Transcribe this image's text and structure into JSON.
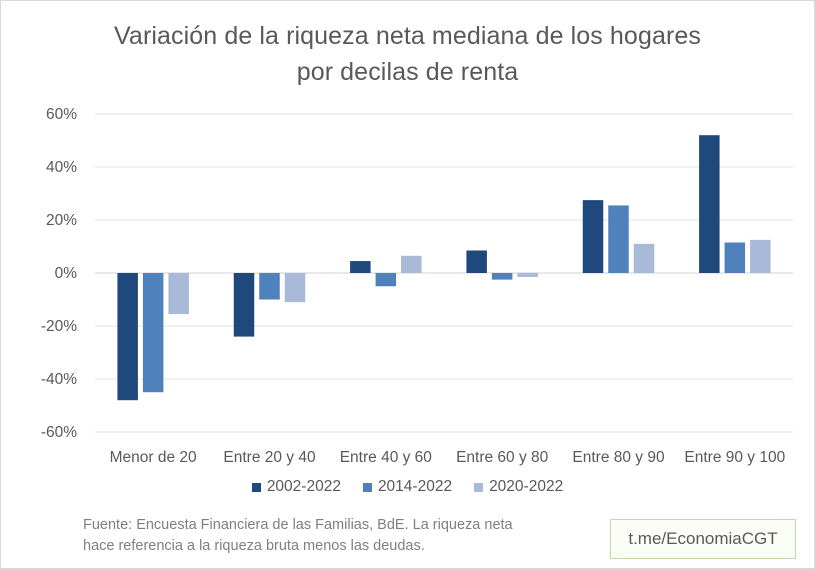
{
  "chart_data": {
    "type": "bar",
    "title": "Variación de la riqueza neta mediana de los hogares",
    "subtitle": "por decilas de renta",
    "categories": [
      "Menor de 20",
      "Entre 20 y 40",
      "Entre 40 y 60",
      "Entre 60 y 80",
      "Entre 80 y 90",
      "Entre 90 y 100"
    ],
    "series": [
      {
        "name": "2002-2022",
        "color": "#1f497d",
        "values": [
          -48,
          -24,
          4.5,
          8.5,
          27.5,
          52
        ]
      },
      {
        "name": "2014-2022",
        "color": "#4f81bd",
        "values": [
          -45,
          -10,
          -5,
          -2.5,
          25.5,
          11.5
        ]
      },
      {
        "name": "2020-2022",
        "color": "#a9bad9",
        "values": [
          -15.5,
          -11,
          6.5,
          -1.5,
          11,
          12.5
        ]
      }
    ],
    "yticks": [
      "-60%",
      "-40%",
      "-20%",
      "0%",
      "20%",
      "40%",
      "60%"
    ],
    "ytick_values": [
      -60,
      -40,
      -20,
      0,
      20,
      40,
      60
    ],
    "ylim": [
      -60,
      60
    ],
    "grid": true,
    "legend_position": "bottom"
  },
  "footnote": {
    "line1": "Fuente: Encuesta Financiera de las Familias, BdE. La riqueza neta",
    "line2": "hace referencia a la riqueza bruta menos las deudas."
  },
  "handle": "t.me/EconomiaCGT"
}
